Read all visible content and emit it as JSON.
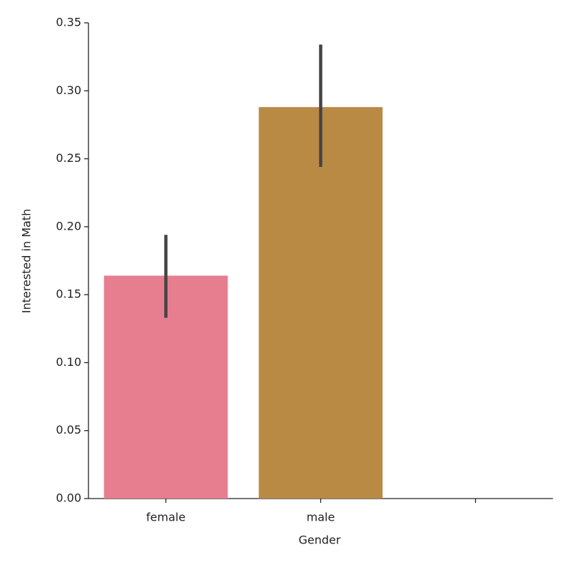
{
  "chart_data": {
    "type": "bar",
    "xlabel": "Gender",
    "ylabel": "Interested in Math",
    "categories": [
      "female",
      "male",
      null
    ],
    "values": [
      0.164,
      0.288,
      null
    ],
    "ci_low": [
      0.133,
      0.244,
      null
    ],
    "ci_high": [
      0.194,
      0.334,
      null
    ],
    "colors": [
      "#e67e90",
      "#b98a44",
      null
    ],
    "error_color": "#444444",
    "ylim": [
      0,
      0.35
    ],
    "yticks": [
      {
        "value": 0,
        "label": "0.00"
      },
      {
        "value": 0.05,
        "label": "0.05"
      },
      {
        "value": 0.1,
        "label": "0.10"
      },
      {
        "value": 0.15,
        "label": "0.15"
      },
      {
        "value": 0.2,
        "label": "0.20"
      },
      {
        "value": 0.25,
        "label": "0.25"
      },
      {
        "value": 0.3,
        "label": "0.30"
      },
      {
        "value": 0.35,
        "label": "0.35"
      }
    ],
    "grid": false
  }
}
